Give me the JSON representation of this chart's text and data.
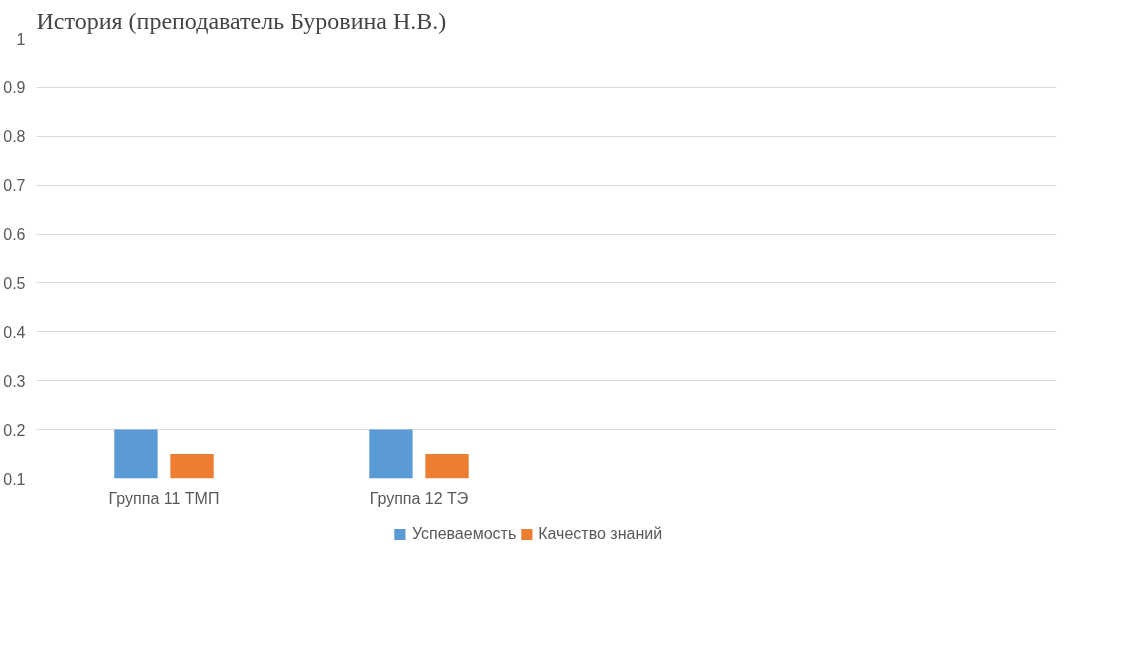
{
  "chart_data": {
    "type": "bar",
    "title": "История (преподаватель Буровина Н.В.)",
    "categories": [
      "Группа 11 ТМП",
      "Группа 12 ТЭ",
      null,
      null
    ],
    "series": [
      {
        "name": "Успеваемость",
        "color": "#5b9bd5",
        "values": [
          0.2,
          0.2,
          null,
          null
        ]
      },
      {
        "name": "Качество знаний",
        "color": "#ed7d31",
        "values": [
          0.15,
          0.15,
          null,
          null
        ]
      }
    ],
    "ylim": [
      0.1,
      1
    ],
    "yticks": [
      0.1,
      0.2,
      0.3,
      0.4,
      0.5,
      0.6,
      0.7,
      0.8,
      0.9,
      1
    ],
    "grid": "y",
    "legend": "bottom"
  }
}
